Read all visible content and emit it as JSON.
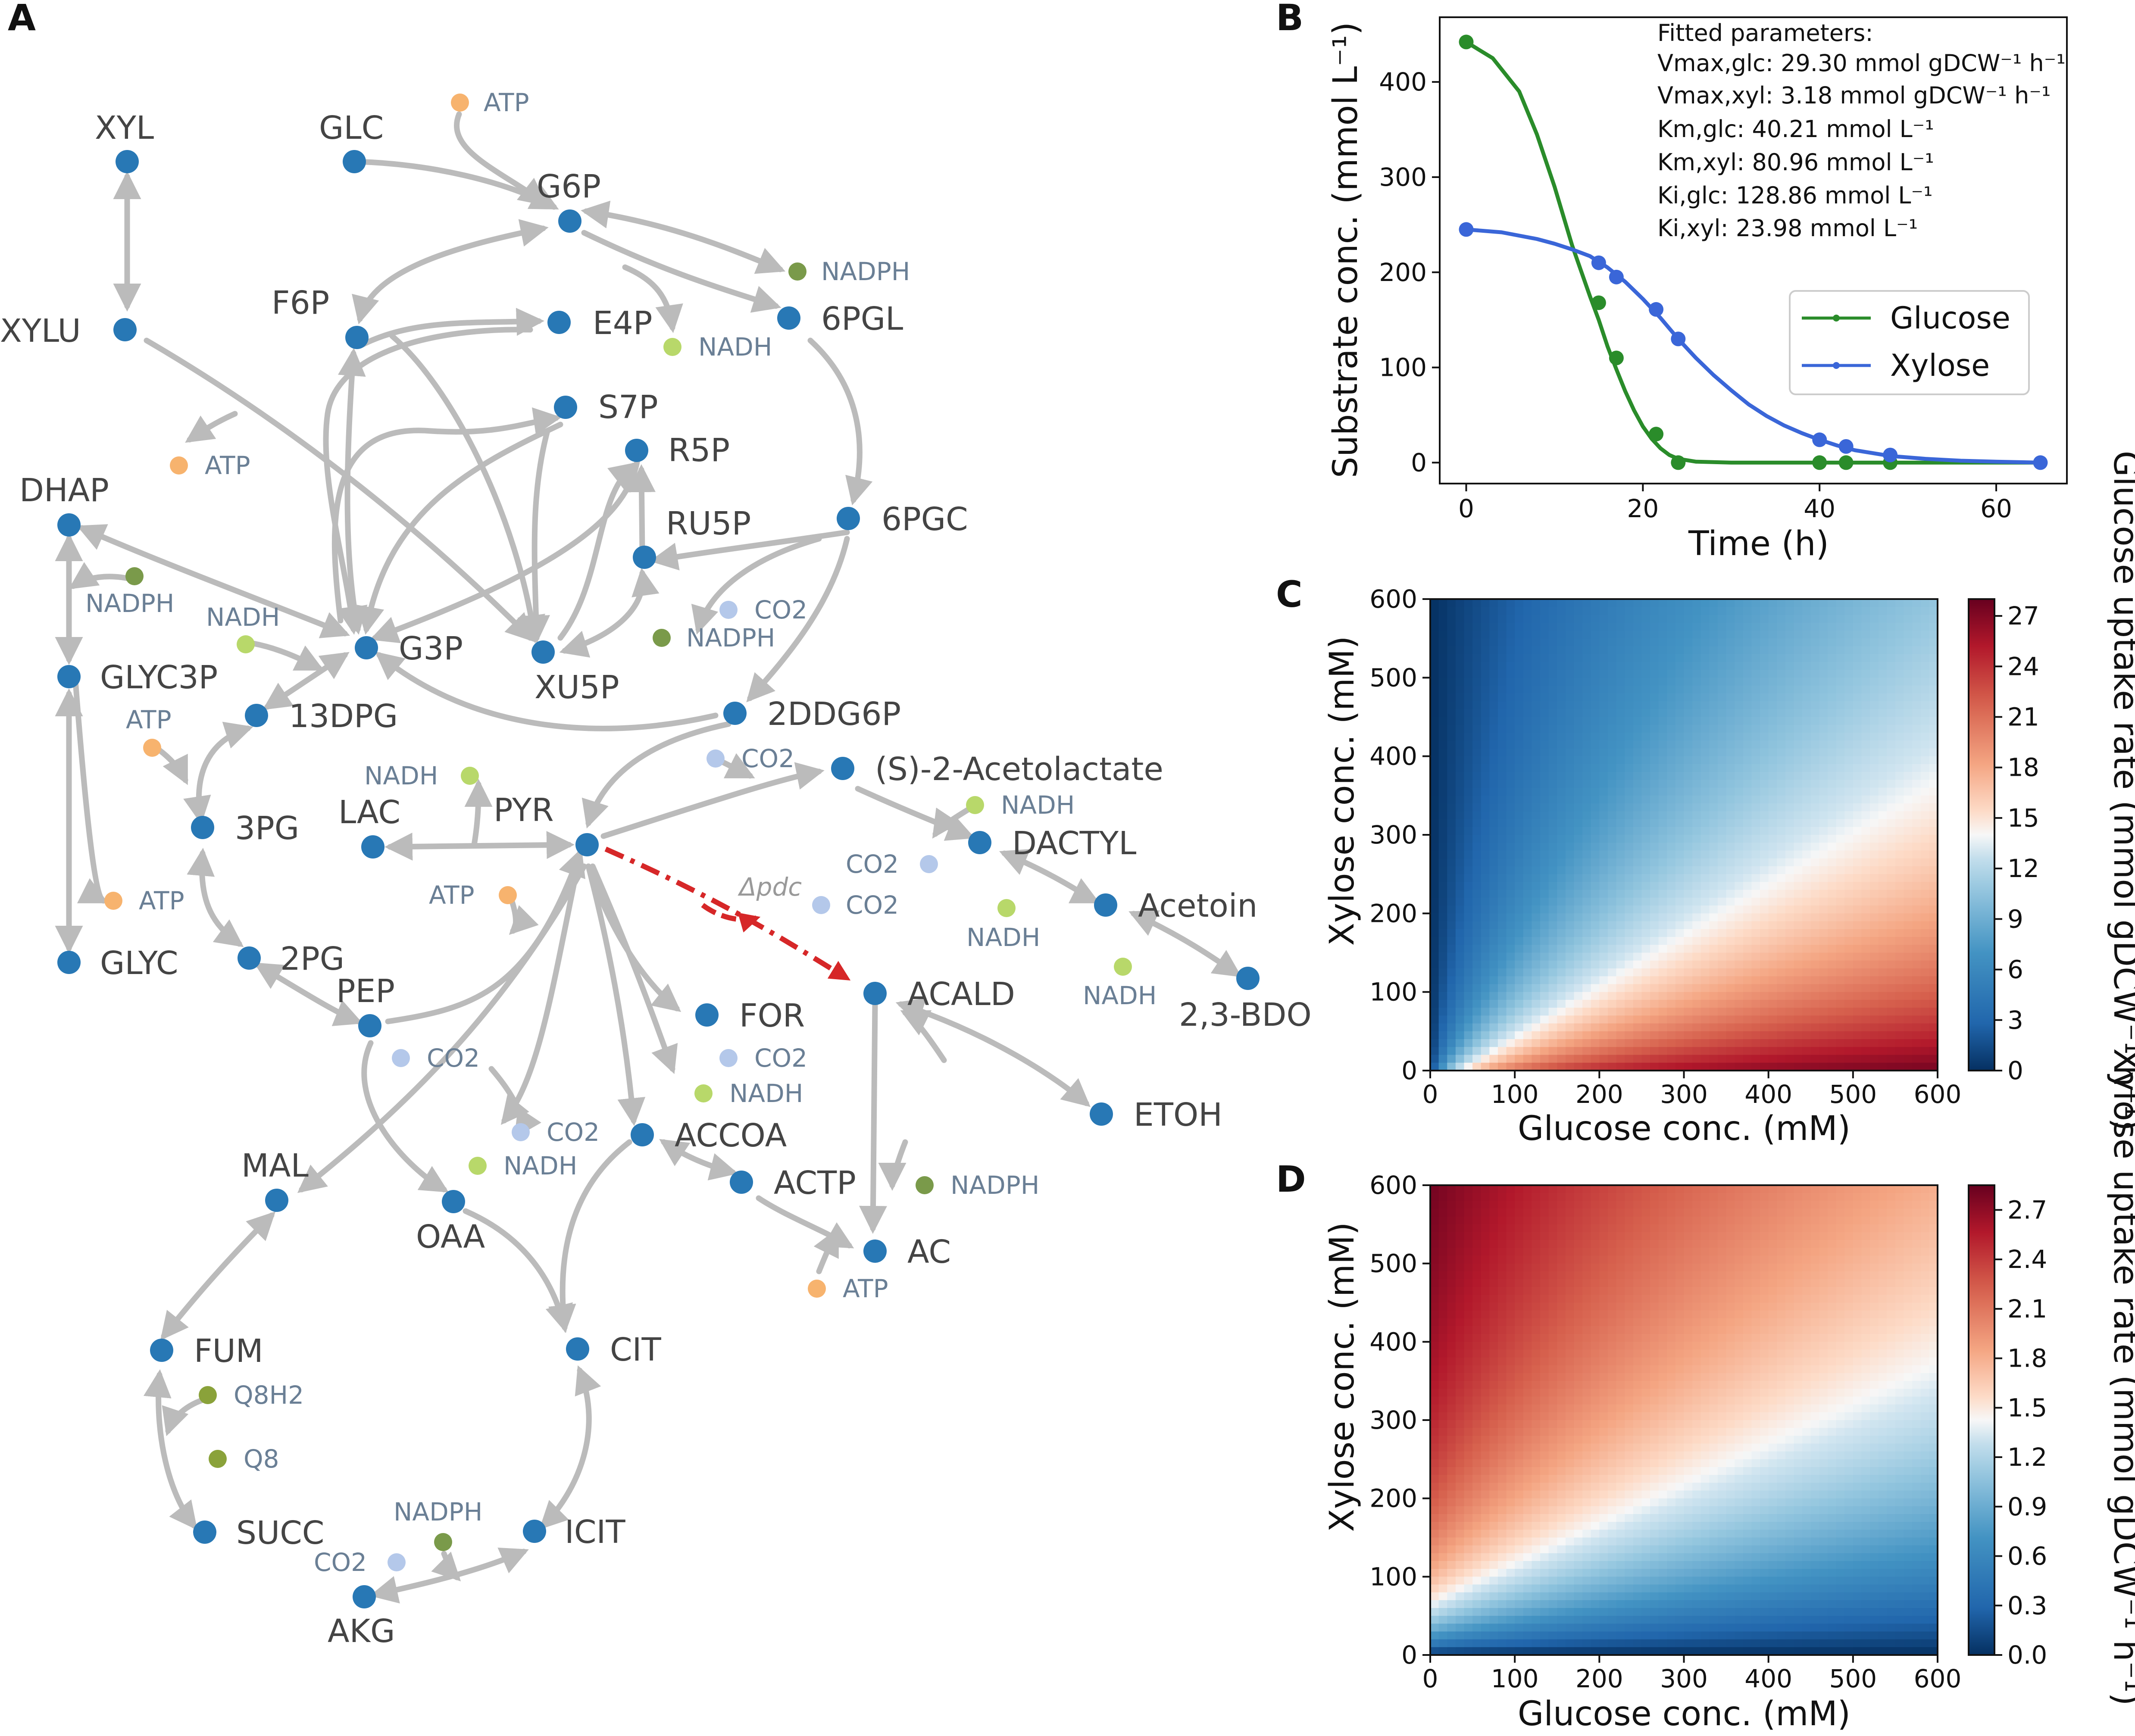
{
  "panels": {
    "a": "A",
    "b": "B",
    "c": "C",
    "d": "D"
  },
  "colors": {
    "metabolite": "#2878b5",
    "edge": "#bbbbbb",
    "ATP": "#f7b36e",
    "NADH": "#b8d86a",
    "NADPH": "#7a9a4a",
    "CO2": "#b4c8ea",
    "Q": "#8aa23a",
    "knockout": "#d62728",
    "glucose": "#2a8c2a",
    "xylose": "#3a66d8"
  },
  "network": {
    "metabolites": [
      "XYL",
      "XYLU",
      "GLC",
      "G6P",
      "F6P",
      "E4P",
      "6PGL",
      "S7P",
      "R5P",
      "RU5P",
      "6PGC",
      "DHAP",
      "GLYC3P",
      "G3P",
      "XU5P",
      "13DPG",
      "2DDG6P",
      "3PG",
      "LAC",
      "PYR",
      "(S)-2-Acetolactate",
      "DACTYL",
      "Acetoin",
      "2,3-BDO",
      "GLYC",
      "2PG",
      "PEP",
      "ACALD",
      "FOR",
      "ETOH",
      "ACCOA",
      "MAL",
      "OAA",
      "ACTP",
      "AC",
      "FUM",
      "CIT",
      "SUCC",
      "ICIT",
      "AKG"
    ],
    "cofactors": [
      "ATP",
      "NADPH",
      "NADH",
      "ATP",
      "NADPH",
      "NADH",
      "CO2",
      "NADPH",
      "ATP",
      "ATP",
      "NADH",
      "CO2",
      "NADH",
      "CO2",
      "CO2",
      "ATP",
      "NADH",
      "NADH",
      "CO2",
      "CO2",
      "NADH",
      "CO2",
      "NADH",
      "NADPH",
      "ATP",
      "Q8H2",
      "Q8",
      "NADPH",
      "CO2"
    ],
    "knockout_label": "Δpdc"
  },
  "chart_data": [
    {
      "panel": "B",
      "type": "line",
      "title": "",
      "xlabel": "Time (h)",
      "ylabel": "Substrate conc. (mmol L⁻¹)",
      "xlim": [
        -3,
        68
      ],
      "ylim": [
        -22,
        468
      ],
      "xticks": [
        0,
        20,
        40,
        60
      ],
      "yticks": [
        0,
        100,
        200,
        300,
        400
      ],
      "annotation": [
        "Fitted parameters:",
        "Vmax,glc: 29.30 mmol gDCW⁻¹ h⁻¹",
        "Vmax,xyl: 3.18 mmol gDCW⁻¹ h⁻¹",
        "Km,glc: 40.21 mmol L⁻¹",
        "Km,xyl: 80.96 mmol L⁻¹",
        "Ki,glc: 128.86 mmol L⁻¹",
        "Ki,xyl: 23.98 mmol L⁻¹"
      ],
      "legend_position": "center-right",
      "series": [
        {
          "name": "Glucose",
          "color": "#2a8c2a",
          "points": {
            "x": [
              0,
              15,
              17,
              21.5,
              24,
              40,
              43,
              48
            ],
            "y": [
              442,
              168,
              110,
              30,
              0,
              0,
              0,
              0
            ]
          },
          "fit": {
            "x": [
              0,
              3,
              6,
              8,
              10,
              12,
              14,
              15,
              16,
              17,
              18,
              19,
              20,
              21,
              22,
              23,
              24,
              26,
              30,
              40,
              50,
              65
            ],
            "y": [
              442,
              425,
              390,
              345,
              290,
              228,
              175,
              150,
              122,
              98,
              75,
              55,
              38,
              25,
              15,
              8,
              4,
              1,
              0,
              0,
              0,
              0
            ]
          }
        },
        {
          "name": "Xylose",
          "color": "#3a66d8",
          "points": {
            "x": [
              0,
              15,
              17,
              21.5,
              24,
              40,
              43,
              48,
              65
            ],
            "y": [
              245,
              210,
              195,
              161,
              130,
              24,
              17,
              8,
              0
            ]
          },
          "fit": {
            "x": [
              0,
              4,
              8,
              10,
              12,
              14,
              16,
              18,
              20,
              22,
              24,
              26,
              28,
              30,
              32,
              34,
              36,
              38,
              40,
              42,
              44,
              46,
              48,
              52,
              56,
              60,
              65
            ],
            "y": [
              245,
              242,
              235,
              230,
              224,
              217,
              205,
              190,
              172,
              152,
              130,
              110,
              92,
              76,
              61,
              49,
              39,
              31,
              24,
              18,
              13,
              10,
              7,
              4,
              2,
              1,
              0
            ]
          }
        }
      ]
    },
    {
      "panel": "C",
      "type": "heatmap",
      "title": "",
      "xlabel": "Glucose conc. (mM)",
      "ylabel": "Xylose conc. (mM)",
      "colorbar_label": "Glucose uptake rate (mmol gDCW⁻¹ h⁻¹)",
      "xlim": [
        0,
        600
      ],
      "ylim": [
        0,
        600
      ],
      "xticks": [
        0,
        100,
        200,
        300,
        400,
        500,
        600
      ],
      "yticks": [
        0,
        100,
        200,
        300,
        400,
        500,
        600
      ],
      "colorbar_ticks": [
        0,
        3,
        6,
        9,
        12,
        15,
        18,
        21,
        24,
        27
      ],
      "crange": [
        0,
        28
      ],
      "params": {
        "vmax": 29.3,
        "km": 40.21,
        "ki_other": 23.98,
        "substrate": "glucose"
      }
    },
    {
      "panel": "D",
      "type": "heatmap",
      "title": "",
      "xlabel": "Glucose conc. (mM)",
      "ylabel": "Xylose conc. (mM)",
      "colorbar_label": "Xylose uptake rate (mmol gDCW⁻¹ h⁻¹)",
      "xlim": [
        0,
        600
      ],
      "ylim": [
        0,
        600
      ],
      "xticks": [
        0,
        100,
        200,
        300,
        400,
        500,
        600
      ],
      "yticks": [
        0,
        100,
        200,
        300,
        400,
        500,
        600
      ],
      "colorbar_ticks": [
        0.0,
        0.3,
        0.6,
        0.9,
        1.2,
        1.5,
        1.8,
        2.1,
        2.4,
        2.7
      ],
      "crange": [
        0,
        2.85
      ],
      "params": {
        "vmax": 3.18,
        "km": 80.96,
        "ki_other": 128.86,
        "substrate": "xylose"
      }
    }
  ]
}
